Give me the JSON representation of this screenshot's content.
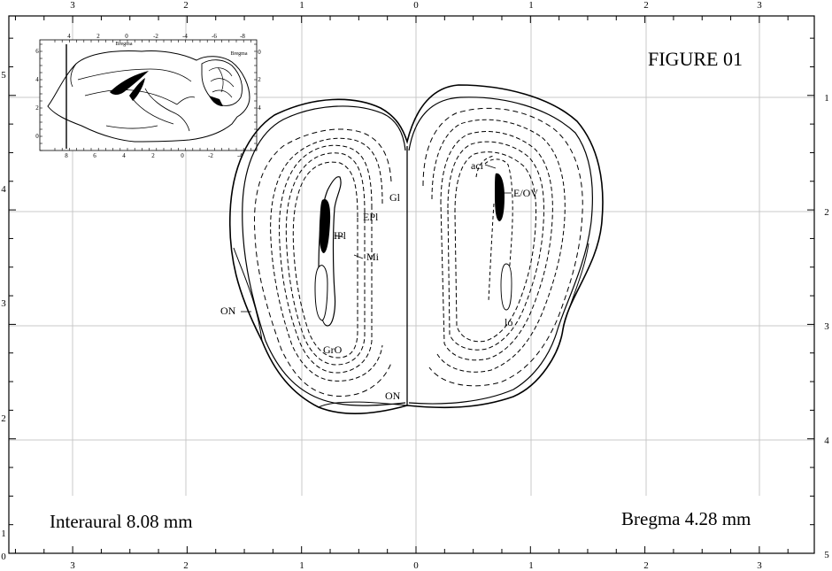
{
  "figure": {
    "title": "FIGURE 01",
    "interaural": "Interaural 8.08 mm",
    "bregma": "Bregma 4.28 mm"
  },
  "axes": {
    "top_ticks": [
      "3",
      "2",
      "1",
      "0",
      "1",
      "2",
      "3"
    ],
    "bottom_ticks": [
      "3",
      "2",
      "1",
      "0",
      "1",
      "2",
      "3"
    ],
    "left_ticks": [
      "5",
      "4",
      "3",
      "2",
      "1",
      "0"
    ],
    "right_ticks": [
      "1",
      "2",
      "3",
      "4",
      "5"
    ]
  },
  "structures": {
    "gl": "Gl",
    "epl": "EPl",
    "iph": "IPl",
    "mi": "Mi",
    "on_side": "ON",
    "gro": "GrO",
    "on_bottom": "ON",
    "aci": "aci",
    "eov": "E/OV",
    "lo": "lo"
  },
  "inset": {
    "top_bregma": "Bregma",
    "right_bregma": "Bregma",
    "top_ticks": [
      "4",
      "2",
      "0",
      "-2",
      "-4",
      "-6",
      "-8"
    ],
    "bottom_ticks": [
      "8",
      "6",
      "4",
      "2",
      "0",
      "-2",
      "-4"
    ],
    "left_ticks": [
      "6",
      "4",
      "2",
      "0"
    ],
    "right_ticks": [
      "0",
      "2",
      "4"
    ]
  }
}
